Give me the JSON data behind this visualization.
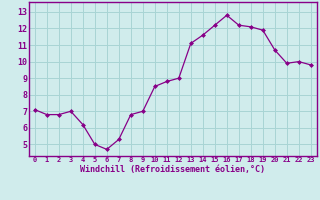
{
  "x": [
    0,
    1,
    2,
    3,
    4,
    5,
    6,
    7,
    8,
    9,
    10,
    11,
    12,
    13,
    14,
    15,
    16,
    17,
    18,
    19,
    20,
    21,
    22,
    23
  ],
  "y": [
    7.1,
    6.8,
    6.8,
    7.0,
    6.2,
    5.0,
    4.7,
    5.3,
    6.8,
    7.0,
    8.5,
    8.8,
    9.0,
    11.1,
    11.6,
    12.2,
    12.8,
    12.2,
    12.1,
    11.9,
    10.7,
    9.9,
    10.0,
    9.8
  ],
  "yticks": [
    5,
    6,
    7,
    8,
    9,
    10,
    11,
    12,
    13
  ],
  "xlabel": "Windchill (Refroidissement éolien,°C)",
  "line_color": "#880088",
  "marker_color": "#880088",
  "bg_color": "#d0ecec",
  "grid_color": "#a8d4d4",
  "axis_label_color": "#880088",
  "tick_color": "#880088",
  "border_color": "#880088",
  "xlim_min": -0.5,
  "xlim_max": 23.5,
  "ylim_min": 4.3,
  "ylim_max": 13.6
}
